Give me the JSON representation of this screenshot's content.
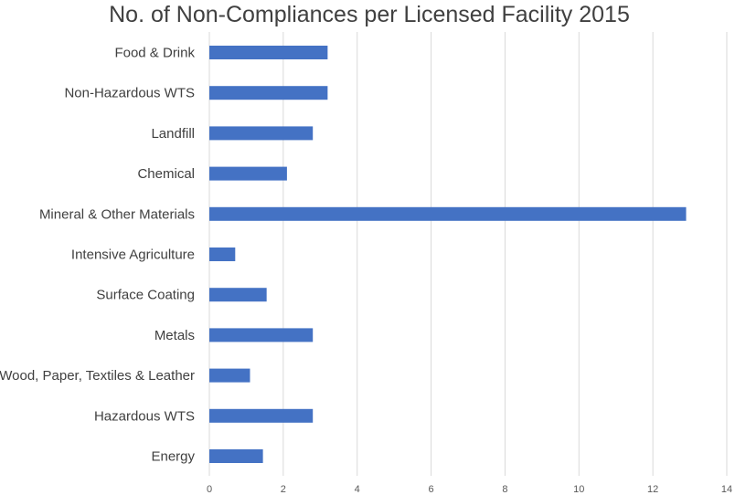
{
  "chart_data": {
    "type": "bar",
    "orientation": "horizontal",
    "title": "No. of Non-Compliances per Licensed Facility 2015",
    "xlabel": "",
    "ylabel": "",
    "xlim": [
      0,
      14
    ],
    "x_ticks": [
      "0",
      "2",
      "4",
      "6",
      "8",
      "10",
      "12",
      "14"
    ],
    "grid": "vertical",
    "legend": "none",
    "bar_color": "#4472c4",
    "categories": [
      "Food & Drink",
      "Non-Hazardous WTS",
      "Landfill",
      "Chemical",
      "Mineral & Other Materials",
      "Intensive Agriculture",
      "Surface Coating",
      "Metals",
      "Wood, Paper, Textiles & Leather",
      "Hazardous WTS",
      "Energy"
    ],
    "values": [
      3.2,
      3.2,
      2.8,
      2.1,
      12.9,
      0.7,
      1.55,
      2.8,
      1.1,
      2.8,
      1.45
    ]
  }
}
